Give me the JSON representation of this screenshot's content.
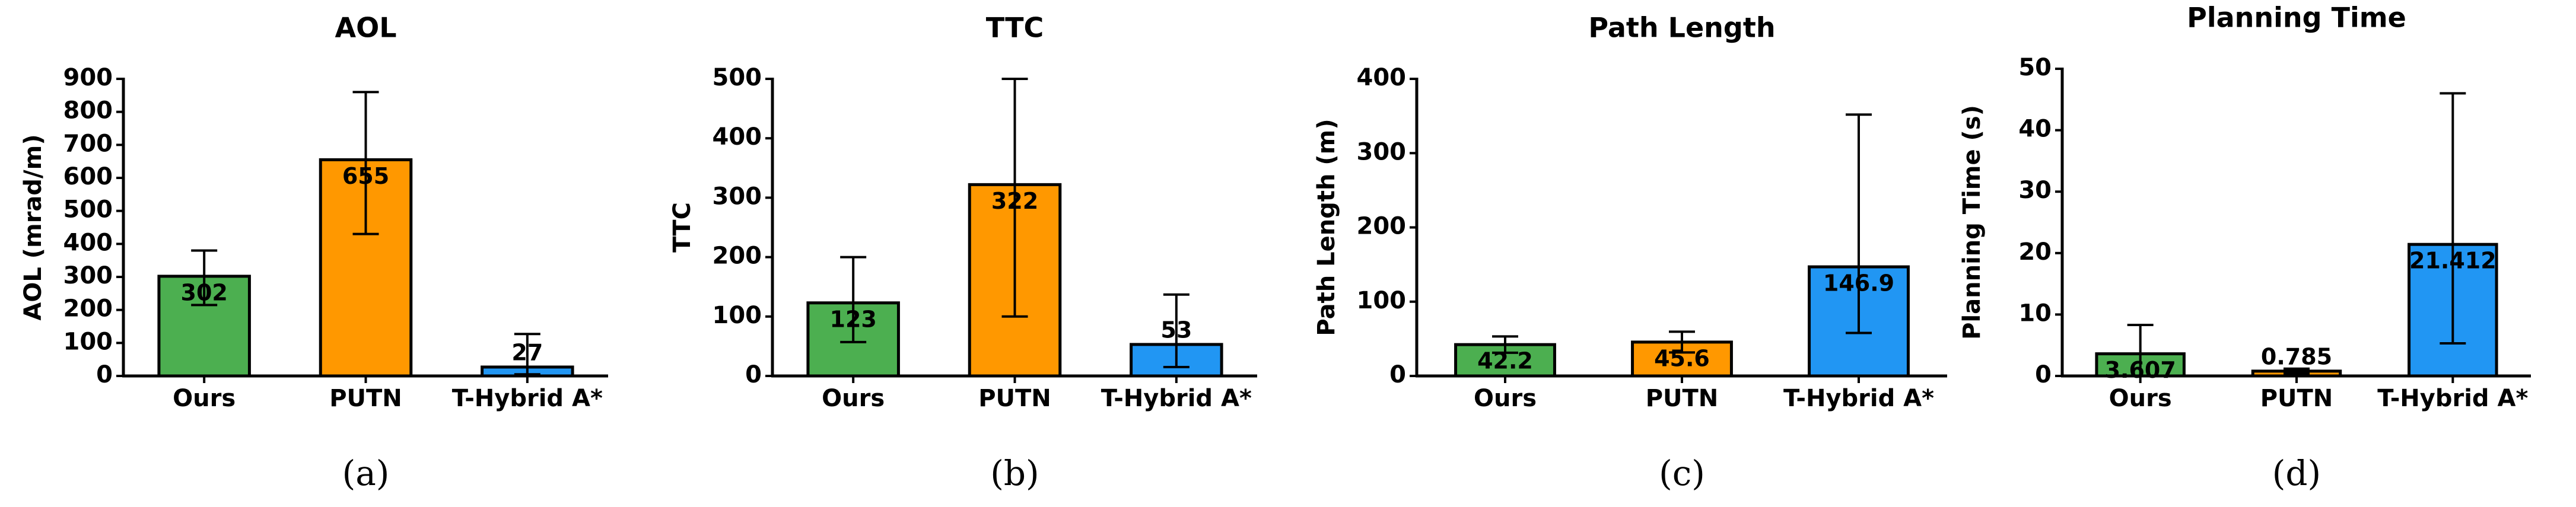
{
  "chart_data": [
    {
      "type": "bar",
      "title": "AOL",
      "ylabel": "AOL (mrad/m)",
      "caption": "(a)",
      "categories": [
        "Ours",
        "PUTN",
        "T-Hybrid A*"
      ],
      "values": [
        302,
        655,
        27
      ],
      "errors": [
        [
          87,
          78
        ],
        [
          225,
          205
        ],
        [
          22,
          100
        ]
      ],
      "colors": [
        "#4caf50",
        "#ff9800",
        "#2196f3"
      ],
      "value_label_colors": [
        "#ffffff",
        "#ffffff",
        "#000000"
      ],
      "ylim": [
        0,
        900
      ],
      "yticks": [
        0,
        100,
        200,
        300,
        400,
        500,
        600,
        700,
        800,
        900
      ]
    },
    {
      "type": "bar",
      "title": "TTC",
      "ylabel": "TTC",
      "caption": "(b)",
      "categories": [
        "Ours",
        "PUTN",
        "T-Hybrid A*"
      ],
      "values": [
        123,
        322,
        53
      ],
      "errors": [
        [
          66,
          77
        ],
        [
          222,
          178
        ],
        [
          38,
          84
        ]
      ],
      "colors": [
        "#4caf50",
        "#ff9800",
        "#2196f3"
      ],
      "value_label_colors": [
        "#ffffff",
        "#ffffff",
        "#000000"
      ],
      "ylim": [
        0,
        500
      ],
      "yticks": [
        0,
        100,
        200,
        300,
        400,
        500
      ]
    },
    {
      "type": "bar",
      "title": "Path Length",
      "ylabel": "Path Length (m)",
      "caption": "(c)",
      "categories": [
        "Ours",
        "PUTN",
        "T-Hybrid A*"
      ],
      "values": [
        42.2,
        45.6,
        146.9
      ],
      "errors": [
        [
          11,
          11
        ],
        [
          14,
          14
        ],
        [
          89,
          205
        ]
      ],
      "colors": [
        "#4caf50",
        "#ff9800",
        "#2196f3"
      ],
      "value_label_colors": [
        "#ffffff",
        "#ffffff",
        "#ffffff"
      ],
      "ylim": [
        0,
        400
      ],
      "yticks": [
        0,
        100,
        200,
        300,
        400
      ]
    },
    {
      "type": "bar",
      "title": "Planning Time",
      "ylabel": "Planning Time (s)",
      "caption": "(d)",
      "categories": [
        "Ours",
        "PUTN",
        "T-Hybrid A*"
      ],
      "values": [
        3.607,
        0.785,
        21.412
      ],
      "errors": [
        [
          3.6,
          4.7
        ],
        [
          0.4,
          0.4
        ],
        [
          16.1,
          24.6
        ]
      ],
      "colors": [
        "#4caf50",
        "#ff9800",
        "#2196f3"
      ],
      "value_label_colors": [
        "#ffffff",
        "#000000",
        "#ffffff"
      ],
      "ylim": [
        0,
        50
      ],
      "yticks": [
        0,
        10,
        20,
        30,
        40,
        50
      ]
    }
  ]
}
